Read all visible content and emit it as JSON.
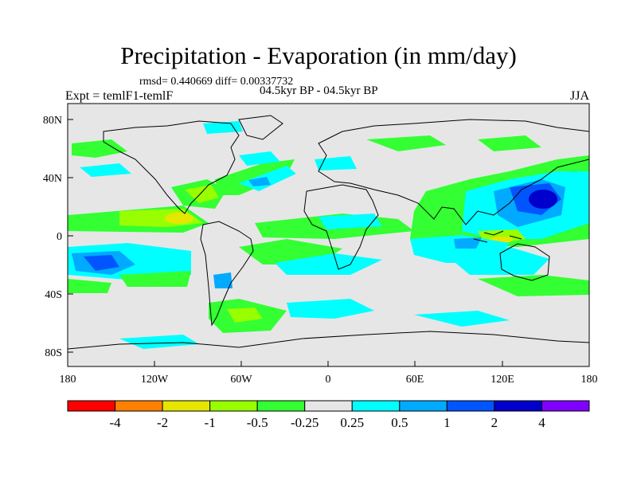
{
  "title": "Precipitation - Evaporation (in mm/day)",
  "stats": "rmsd= 0.440669 diff= 0.00337732",
  "period": "04.5kyr BP - 04.5kyr BP",
  "experiment": "Expt = temlF1-temlF",
  "season": "JJA",
  "lat_ticks": [
    "80N",
    "40N",
    "0",
    "40S",
    "80S"
  ],
  "lon_ticks": [
    "180",
    "120W",
    "60W",
    "0",
    "60E",
    "120E",
    "180"
  ],
  "colorbar": {
    "labels": [
      "-4",
      "-2",
      "-1",
      "-0.5",
      "-0.25",
      "0.25",
      "0.5",
      "1",
      "2",
      "4"
    ],
    "colors": [
      "#ff0000",
      "#ff8000",
      "#e6e600",
      "#99ff00",
      "#33ff33",
      "#e6e6e6",
      "#00ffff",
      "#00aaff",
      "#0055ff",
      "#0000cc",
      "#8000ff"
    ]
  },
  "colors": {
    "background": "#e6e6e6",
    "coast": "#000000"
  }
}
